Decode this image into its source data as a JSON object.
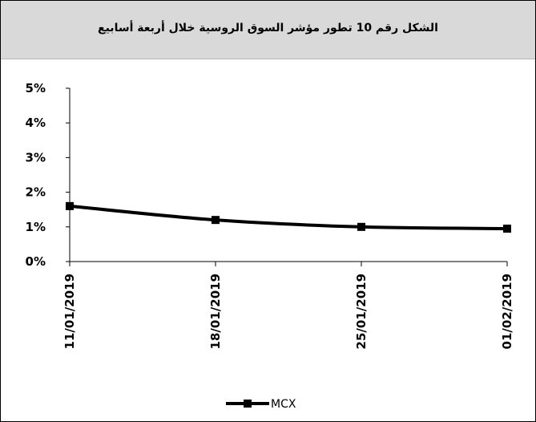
{
  "chart_data": {
    "type": "line",
    "title": "الشكل رقم 10 تطور مؤشر السوق الروسية خلال أربعة أسابيع",
    "xlabel": "",
    "ylabel": "",
    "categories": [
      "11/01/2019",
      "18/01/2019",
      "25/01/2019",
      "01/02/2019"
    ],
    "yticks": [
      "0%",
      "1%",
      "2%",
      "3%",
      "4%",
      "5%"
    ],
    "ylim": [
      0,
      5
    ],
    "series": [
      {
        "name": "MCX",
        "values": [
          1.6,
          1.2,
          1.0,
          0.95
        ],
        "color": "#000000",
        "marker": "square"
      }
    ],
    "grid": false,
    "legend_position": "bottom-center"
  }
}
